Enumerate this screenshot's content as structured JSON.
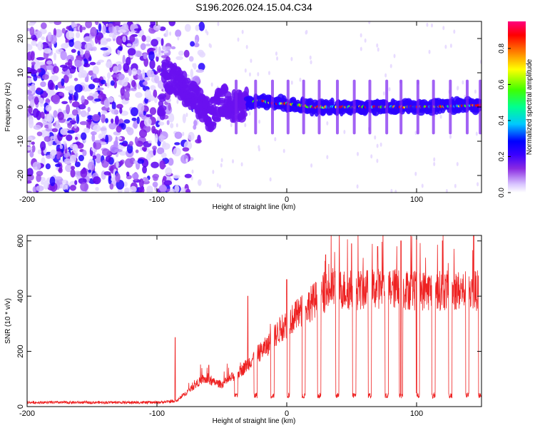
{
  "page": {
    "title": "S196.2026.024.15.04.C34"
  },
  "chart_data": [
    {
      "type": "heatmap",
      "xlabel": "Height of straight line (km)",
      "ylabel": "Frequency (Hz)",
      "xlim": [
        -200,
        150
      ],
      "ylim": [
        -25,
        25
      ],
      "xticks": [
        -200,
        -100,
        0,
        100
      ],
      "yticks": [
        -20,
        -10,
        0,
        10,
        20
      ],
      "colorbar": {
        "label": "Normalized spectral amplitude",
        "range": [
          0,
          0.95
        ],
        "ticks": [
          0.0,
          0.2,
          0.4,
          0.6,
          0.8
        ],
        "tick_labels": [
          "0.0",
          "0.2",
          "0.4",
          "0.6",
          "0.8"
        ],
        "colors": [
          "#ffffff",
          "#c8a8ff",
          "#8a2be2",
          "#3a00ff",
          "#0000ff",
          "#00c8ff",
          "#00ff80",
          "#40ff00",
          "#ffff00",
          "#ff8000",
          "#ff0000",
          "#ff007f"
        ]
      },
      "features": {
        "noise_region_x": [
          -200,
          -90
        ],
        "drifting_tone": [
          [
            -95,
            10
          ],
          [
            -80,
            6
          ],
          [
            -70,
            2
          ],
          [
            -60,
            -3
          ],
          [
            -50,
            2
          ],
          [
            -40,
            0
          ],
          [
            -20,
            2
          ],
          [
            -10,
            1
          ],
          [
            0,
            1
          ],
          [
            20,
            0
          ],
          [
            50,
            0
          ],
          [
            100,
            0
          ],
          [
            150,
            0.5
          ]
        ],
        "steady_line_freq_hz": 0
      }
    },
    {
      "type": "line",
      "xlabel": "Height of straight line (km)",
      "ylabel": "SNR (10 * v/v)",
      "xlim": [
        -200,
        150
      ],
      "ylim": [
        0,
        620
      ],
      "xticks": [
        -200,
        -100,
        0,
        100
      ],
      "yticks": [
        0,
        200,
        400,
        600
      ],
      "series": [
        {
          "name": "SNR",
          "color": "#ee2222",
          "envelope": [
            [
              -200,
              15
            ],
            [
              -150,
              15
            ],
            [
              -100,
              15
            ],
            [
              -85,
              20
            ],
            [
              -75,
              60
            ],
            [
              -65,
              100
            ],
            [
              -50,
              80
            ],
            [
              -35,
              130
            ],
            [
              -25,
              180
            ],
            [
              -15,
              220
            ],
            [
              -5,
              280
            ],
            [
              5,
              320
            ],
            [
              15,
              360
            ],
            [
              25,
              400
            ],
            [
              35,
              430
            ],
            [
              50,
              420
            ],
            [
              75,
              430
            ],
            [
              100,
              420
            ],
            [
              125,
              420
            ],
            [
              150,
              420
            ]
          ],
          "dropouts_x": [
            -39,
            -24,
            -11,
            1,
            13,
            25,
            39,
            52,
            64,
            77,
            88,
            101,
            113,
            126,
            139,
            149
          ],
          "dropout_level": 30,
          "peaks": [
            [
              -86,
              250
            ],
            [
              -60,
              150
            ],
            [
              -30,
              400
            ],
            [
              0,
              460
            ],
            [
              30,
              550
            ],
            [
              50,
              590
            ],
            [
              70,
              580
            ],
            [
              88,
              600
            ],
            [
              100,
              610
            ],
            [
              120,
              600
            ],
            [
              144,
              620
            ]
          ]
        }
      ]
    }
  ]
}
